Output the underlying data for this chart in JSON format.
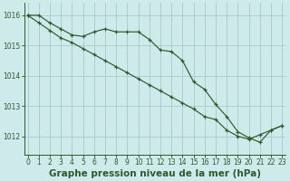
{
  "title": "Graphe pression niveau de la mer (hPa)",
  "bg_color": "#ceeaea",
  "grid_color": "#aacece",
  "line_color": "#2d5a2d",
  "x_ticks": [
    0,
    1,
    2,
    3,
    4,
    5,
    6,
    7,
    8,
    9,
    10,
    11,
    12,
    13,
    14,
    15,
    16,
    17,
    18,
    19,
    20,
    21,
    22,
    23
  ],
  "y_ticks": [
    1012,
    1013,
    1014,
    1015,
    1016
  ],
  "ylim": [
    1011.4,
    1016.4
  ],
  "xlim": [
    -0.3,
    23.3
  ],
  "series1_x": [
    0,
    1,
    2,
    3,
    4,
    5,
    6,
    7,
    8,
    9,
    10,
    11,
    12,
    13,
    14,
    15,
    16,
    17,
    18,
    19,
    20,
    21,
    22,
    23
  ],
  "series1_y": [
    1016.0,
    1016.0,
    1015.75,
    1015.55,
    1015.35,
    1015.3,
    1015.45,
    1015.55,
    1015.45,
    1015.45,
    1015.45,
    1015.2,
    1014.85,
    1014.8,
    1014.5,
    1013.8,
    1013.55,
    1013.05,
    1012.65,
    1012.15,
    1011.95,
    1011.8,
    1012.2,
    1012.35
  ],
  "series2_x": [
    0,
    1,
    2,
    3,
    4,
    5,
    6,
    7,
    8,
    9,
    10,
    11,
    12,
    13,
    14,
    15,
    16,
    17,
    18,
    19,
    20,
    21,
    22,
    23
  ],
  "series2_y": [
    1016.0,
    1015.75,
    1015.5,
    1015.25,
    1015.1,
    1014.9,
    1014.7,
    1014.5,
    1014.3,
    1014.1,
    1013.9,
    1013.7,
    1013.5,
    1013.3,
    1013.1,
    1012.9,
    1012.65,
    1012.55,
    1012.2,
    1012.0,
    1011.9,
    1012.05,
    1012.2,
    1012.35
  ],
  "tick_fontsize": 5.5,
  "title_fontsize": 7.5
}
